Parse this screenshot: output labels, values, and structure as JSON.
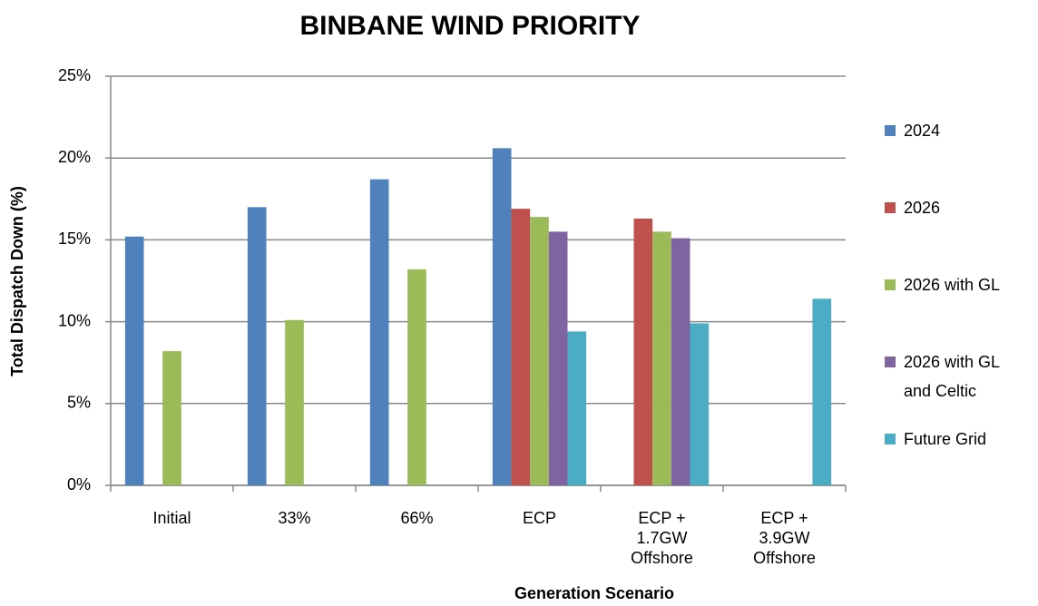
{
  "chart_data": {
    "type": "bar",
    "title": "BINBANE WIND PRIORITY",
    "xlabel": "Generation Scenario",
    "ylabel": "Total Dispatch Down (%)",
    "categories": [
      "Initial",
      "33%",
      "66%",
      "ECP",
      "ECP + 1.7GW Offshore",
      "ECP + 3.9GW Offshore"
    ],
    "series": [
      {
        "name": "2024",
        "color": "#4f81bd",
        "values": [
          15.2,
          17.0,
          18.7,
          20.6,
          null,
          null
        ]
      },
      {
        "name": "2026",
        "color": "#c0504d",
        "values": [
          null,
          null,
          null,
          16.9,
          16.3,
          null
        ]
      },
      {
        "name": "2026 with GL",
        "color": "#9bbb59",
        "values": [
          8.2,
          10.1,
          13.2,
          16.4,
          15.5,
          null
        ]
      },
      {
        "name": "2026 with GL and Celtic",
        "color": "#8064a2",
        "values": [
          null,
          null,
          null,
          15.5,
          15.1,
          null
        ]
      },
      {
        "name": "Future Grid",
        "color": "#4bacc6",
        "values": [
          null,
          null,
          null,
          9.4,
          9.9,
          11.4
        ]
      }
    ],
    "ylim": [
      0,
      25
    ],
    "yticks": [
      {
        "value": 0,
        "label": "0%"
      },
      {
        "value": 5,
        "label": "5%"
      },
      {
        "value": 10,
        "label": "10%"
      },
      {
        "value": 15,
        "label": "15%"
      },
      {
        "value": 20,
        "label": "20%"
      },
      {
        "value": 25,
        "label": "25%"
      }
    ],
    "grid": true,
    "legend": "right"
  }
}
